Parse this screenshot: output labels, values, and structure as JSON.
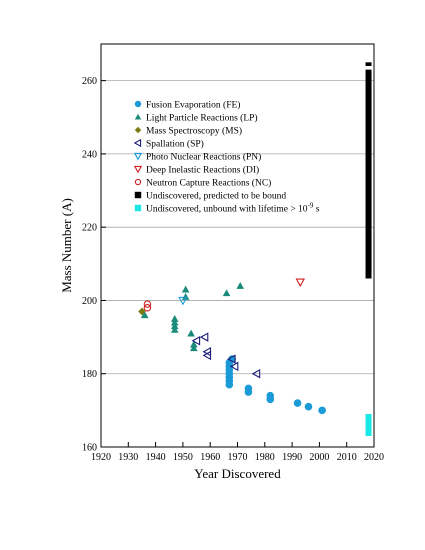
{
  "chart_data": {
    "type": "scatter",
    "xlabel": "Year Discovered",
    "ylabel": "Mass Number (A)",
    "xlim": [
      1920,
      2020
    ],
    "ylim": [
      160,
      270
    ],
    "xticks": [
      1920,
      1930,
      1940,
      1950,
      1960,
      1970,
      1980,
      1990,
      2000,
      2010,
      2020
    ],
    "yticks": [
      160,
      180,
      200,
      220,
      240,
      260
    ],
    "grid": "horizontal",
    "legend_position": "top-left",
    "series": [
      {
        "name": "Fusion Evaporation (FE)",
        "marker": "circle-filled",
        "color": "#1a9ad6",
        "points": [
          [
            1967,
            183
          ],
          [
            1967,
            182
          ],
          [
            1967,
            181
          ],
          [
            1967,
            180
          ],
          [
            1967,
            179
          ],
          [
            1967,
            178
          ],
          [
            1967,
            177
          ],
          [
            1968,
            184
          ],
          [
            1974,
            176
          ],
          [
            1974,
            175
          ],
          [
            1982,
            174
          ],
          [
            1982,
            173
          ],
          [
            1992,
            172
          ],
          [
            1996,
            171
          ],
          [
            2001,
            170
          ]
        ]
      },
      {
        "name": "Light Particle Reactions (LP)",
        "marker": "triangle-up-filled",
        "color": "#1a8a7a",
        "points": [
          [
            1936,
            196
          ],
          [
            1947,
            195
          ],
          [
            1947,
            194
          ],
          [
            1947,
            193
          ],
          [
            1947,
            192
          ],
          [
            1951,
            203
          ],
          [
            1951,
            201
          ],
          [
            1953,
            191
          ],
          [
            1954,
            188
          ],
          [
            1954,
            187
          ],
          [
            1966,
            202
          ],
          [
            1971,
            204
          ]
        ]
      },
      {
        "name": "Mass Spectroscopy (MS)",
        "marker": "diamond-filled",
        "color": "#7a7a10",
        "points": [
          [
            1935,
            197
          ]
        ]
      },
      {
        "name": "Spallation (SP)",
        "marker": "triangle-left-open",
        "color": "#1c1c7a",
        "points": [
          [
            1955,
            189
          ],
          [
            1958,
            190
          ],
          [
            1959,
            186
          ],
          [
            1959,
            185
          ],
          [
            1968,
            184
          ],
          [
            1969,
            182
          ],
          [
            1977,
            180
          ]
        ]
      },
      {
        "name": "Photo Nuclear Reactions (PN)",
        "marker": "triangle-down-open",
        "color": "#1a9ad6",
        "points": [
          [
            1950,
            200
          ]
        ]
      },
      {
        "name": "Deep Inelastic Reactions (DI)",
        "marker": "triangle-down-open",
        "color": "#d02020",
        "points": [
          [
            1993,
            205
          ]
        ]
      },
      {
        "name": "Neutron Capture Reactions (NC)",
        "marker": "circle-open",
        "color": "#d02020",
        "points": [
          [
            1937,
            199
          ],
          [
            1937,
            198
          ]
        ]
      },
      {
        "name": "Undiscovered, predicted to be bound",
        "marker": "bar",
        "color": "#000000",
        "x": 2018,
        "ranges": [
          [
            206,
            263
          ],
          [
            264,
            265
          ]
        ]
      },
      {
        "name_prefix": "Undiscovered, unbound with lifetime > 10",
        "name_exponent": "-9",
        "name_suffix": " s",
        "marker": "bar",
        "color": "#19e8e8",
        "x": 2018,
        "ranges": [
          [
            163,
            169
          ]
        ]
      }
    ]
  }
}
